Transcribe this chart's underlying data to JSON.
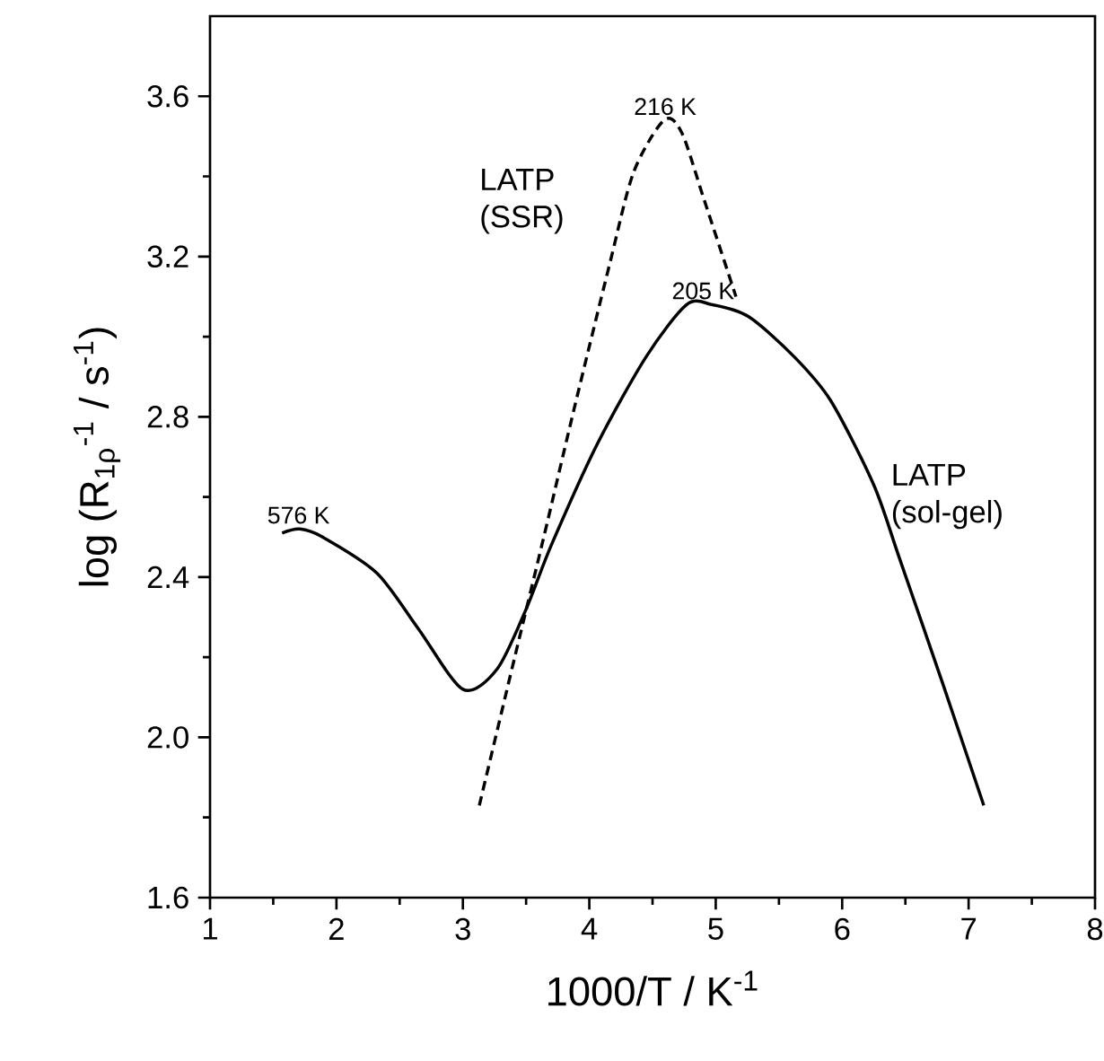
{
  "chart_data": {
    "type": "line",
    "xlabel": "1000/T / K$^{-1}$",
    "ylabel": "log (R$_{1ρ}$$^{-1}$ / s$^{-1}$)",
    "xlim": [
      1,
      8
    ],
    "xticks": [
      1,
      2,
      3,
      4,
      5,
      6,
      7,
      8
    ],
    "ylim": [
      1.6,
      3.8
    ],
    "yticks": [
      1.6,
      {
        "value": 2,
        "label": "2.0"
      },
      2.4,
      2.8,
      3.2,
      3.6
    ],
    "grid": false,
    "series": [
      {
        "name": "LATP (SSR)",
        "color": "#000000",
        "line_style": "dashed",
        "x": [
          3.13,
          3.41,
          3.64,
          3.88,
          4.16,
          4.35,
          4.59,
          4.73,
          4.91,
          5.16
        ],
        "values": [
          1.83,
          2.2,
          2.5,
          2.82,
          3.18,
          3.41,
          3.54,
          3.51,
          3.34,
          3.1
        ]
      },
      {
        "name": "LATP (sol-gel)",
        "color": "#000000",
        "line_style": "solid",
        "x": [
          1.57,
          1.71,
          1.89,
          2.32,
          2.65,
          3.0,
          3.27,
          3.5,
          3.7,
          4.06,
          4.45,
          4.77,
          4.97,
          5.26,
          5.62,
          5.91,
          6.25,
          6.45,
          6.8,
          7.12
        ],
        "values": [
          2.51,
          2.52,
          2.5,
          2.41,
          2.27,
          2.12,
          2.17,
          2.32,
          2.48,
          2.73,
          2.95,
          3.08,
          3.08,
          3.05,
          2.95,
          2.84,
          2.63,
          2.45,
          2.13,
          1.83
        ]
      }
    ],
    "annotations": [
      {
        "text": "216 K",
        "x": 4.6,
        "y": 3.54
      },
      {
        "text": "205 K",
        "x": 4.9,
        "y": 3.08
      },
      {
        "text": "576 K",
        "x": 1.7,
        "y": 2.52
      }
    ]
  }
}
